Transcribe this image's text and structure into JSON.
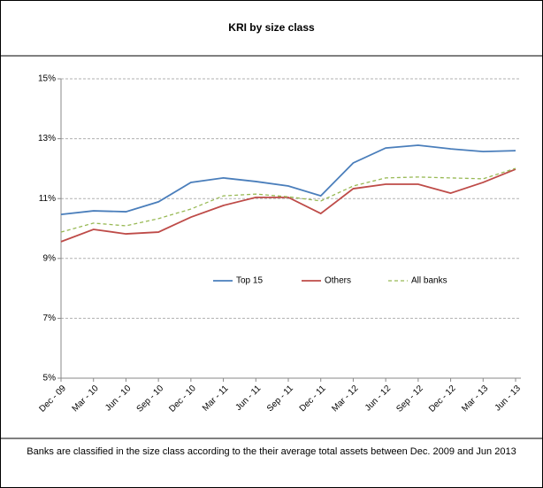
{
  "chart_data": {
    "type": "line",
    "title": "KRI by size class",
    "categories": [
      "Dec - 09",
      "Mar - 10",
      "Jun - 10",
      "Sep - 10",
      "Dec - 10",
      "Mar - 11",
      "Jun - 11",
      "Sep - 11",
      "Dec - 11",
      "Mar - 12",
      "Jun - 12",
      "Sep - 12",
      "Dec - 12",
      "Mar - 13",
      "Jun - 13"
    ],
    "series": [
      {
        "name": "Top 15",
        "color": "#4a7ebb",
        "values": [
          10.47,
          10.59,
          10.56,
          10.89,
          11.54,
          11.69,
          11.57,
          11.42,
          11.09,
          12.19,
          12.69,
          12.78,
          12.66,
          12.57,
          12.6
        ]
      },
      {
        "name": "Others",
        "color": "#be4b48",
        "values": [
          9.56,
          9.97,
          9.82,
          9.88,
          10.38,
          10.77,
          11.04,
          11.04,
          10.5,
          11.33,
          11.48,
          11.48,
          11.18,
          11.54,
          11.98
        ]
      },
      {
        "name": "All banks",
        "color": "#98b954",
        "dashed": true,
        "values": [
          9.88,
          10.18,
          10.09,
          10.33,
          10.65,
          11.09,
          11.15,
          11.06,
          10.92,
          11.42,
          11.69,
          11.72,
          11.69,
          11.66,
          12.01
        ]
      }
    ],
    "ylim": [
      5,
      15
    ],
    "yticks": [
      {
        "value": 5,
        "label": "5%"
      },
      {
        "value": 7,
        "label": "7%"
      },
      {
        "value": 9,
        "label": "9%"
      },
      {
        "value": 11,
        "label": "11%"
      },
      {
        "value": 13,
        "label": "13%"
      },
      {
        "value": 15,
        "label": "15%"
      }
    ],
    "grid": true,
    "legend": "center",
    "note": "Banks are classified in the size class according to the their average total assets between Dec. 2009 and Jun 2013"
  }
}
